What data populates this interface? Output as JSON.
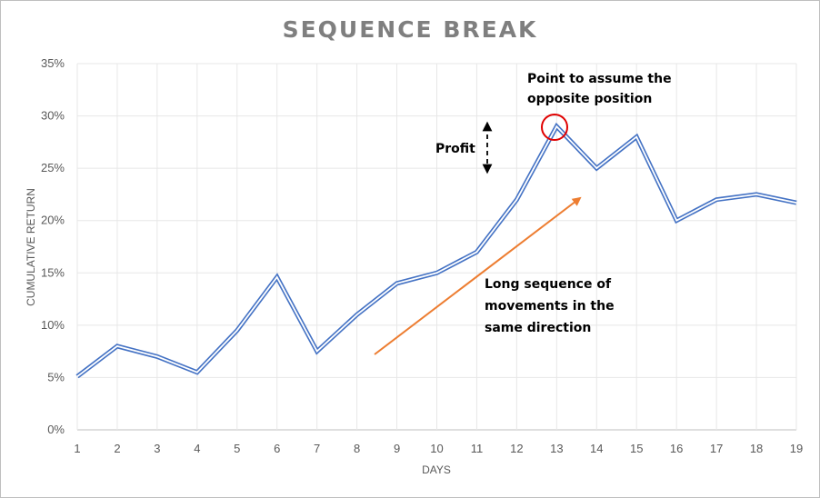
{
  "chart_data": {
    "type": "line",
    "title": "SEQUENCE BREAK",
    "xlabel": "DAYS",
    "ylabel": "CUMULATIVE RETURN",
    "x": [
      1,
      2,
      3,
      4,
      5,
      6,
      7,
      8,
      9,
      10,
      11,
      12,
      13,
      14,
      15,
      16,
      17,
      18,
      19
    ],
    "yticks": [
      "0%",
      "5%",
      "10%",
      "15%",
      "20%",
      "25%",
      "30%",
      "35%"
    ],
    "ylim": [
      0,
      35
    ],
    "grid": true,
    "series": [
      {
        "values": [
          5.1,
          8.0,
          7.0,
          5.5,
          9.5,
          14.6,
          7.5,
          11.0,
          14.0,
          15.0,
          17.0,
          22.0,
          29.0,
          25.0,
          28.0,
          20.0,
          22.0,
          22.5,
          21.7
        ],
        "style": "double-line",
        "color": "#4472c4"
      }
    ],
    "annotations": {
      "peak_label": [
        "Point to assume the",
        "opposite position"
      ],
      "profit_label": "Profit",
      "sequence_label": [
        "Long sequence of",
        "movements in the",
        "same direction"
      ],
      "circle_color": "#e00000",
      "arrow_color": "#ed7d31"
    }
  }
}
